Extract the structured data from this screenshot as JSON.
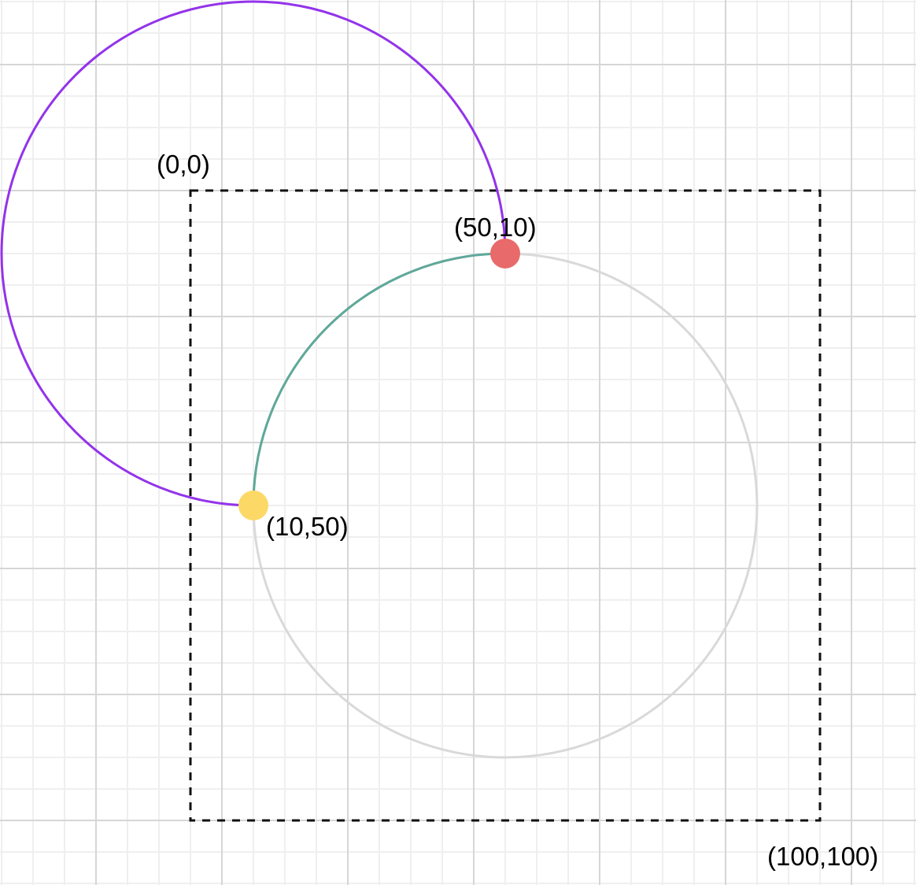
{
  "diagram": {
    "labels": {
      "origin": "(0,0)",
      "start_point": "(50,10)",
      "end_point": "(10,50)",
      "far_corner": "(100,100)"
    },
    "points": {
      "start": {
        "label": "(50,10)",
        "color": "#e86a6a"
      },
      "end": {
        "label": "(10,50)",
        "color": "#fcd867"
      }
    },
    "arcs": {
      "large_arc": {
        "color": "#9333ea"
      },
      "small_arc": {
        "color": "#5fa89a"
      },
      "reference_circle": {
        "color": "#d9d9d9"
      }
    },
    "viewbox_outline": {
      "color": "#111111",
      "style": "dashed"
    },
    "grid": {
      "major_color": "#d6d6d6",
      "minor_color": "#efefef"
    }
  }
}
